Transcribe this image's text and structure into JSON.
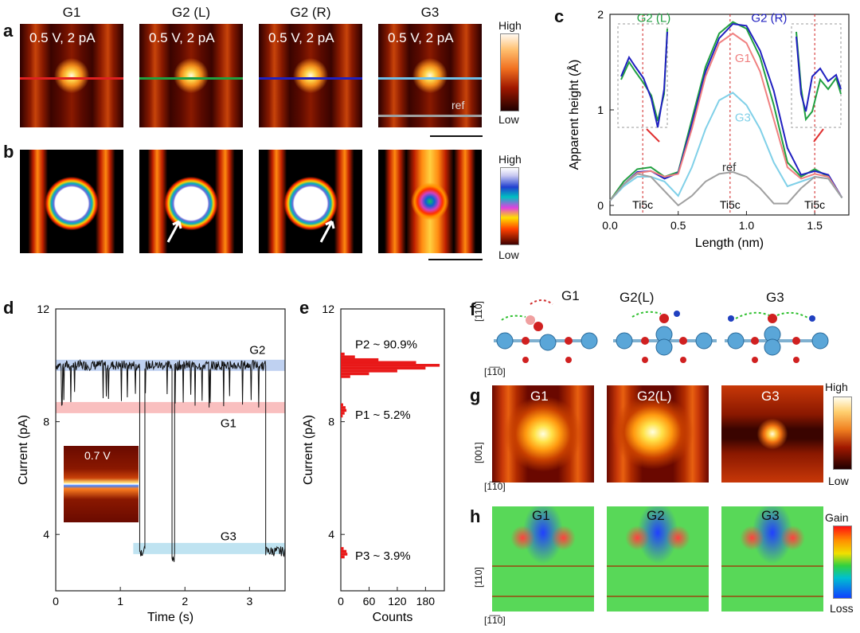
{
  "figure": {
    "panel_letters": [
      "a",
      "b",
      "c",
      "d",
      "e",
      "f",
      "g",
      "h"
    ],
    "a": {
      "columns": [
        "G1",
        "G2 (L)",
        "G2 (R)",
        "G3"
      ],
      "bias_label": "0.5 V, 2 pA",
      "ref_label": "ref",
      "colorbar_high": "High",
      "colorbar_low": "Low",
      "line_colors": [
        "#e02020",
        "#20a040",
        "#2020c0",
        "#70c0e8"
      ]
    },
    "b": {
      "colorbar_high": "High",
      "colorbar_low": "Low"
    },
    "c_labels": {
      "ti_labels": [
        "Ti5c",
        "Ti5c",
        "Ti5c"
      ],
      "inset_arrow_color": "#e03030"
    },
    "d_labels": {
      "inset_bias": "0.7 V",
      "state_labels": [
        "G2",
        "G1",
        "G3"
      ],
      "band_colors": [
        "#b8ccf0",
        "#f8b8b8",
        "#b8e0f0"
      ]
    },
    "e_labels": {
      "populations": [
        "P2 ~ 90.9%",
        "P1 ~ 5.2%",
        "P3 ~ 3.9%"
      ]
    },
    "f": {
      "labels": [
        "G1",
        "G2(L)",
        "G3"
      ],
      "axis_up": "[110]",
      "axis_right": "[1̅1̅0]"
    },
    "g": {
      "labels": [
        "G1",
        "G2(L)",
        "G3"
      ],
      "axis_up": "[001]",
      "axis_right": "[1̅1̅0]",
      "colorbar_high": "High",
      "colorbar_low": "Low"
    },
    "h": {
      "labels": [
        "G1",
        "G2",
        "G3"
      ],
      "axis_up": "[110]",
      "axis_right": "[1̅1̅0]",
      "colorbar_high": "Gain",
      "colorbar_low": "Loss"
    }
  },
  "chart_data": [
    {
      "panel": "c",
      "type": "line",
      "xlabel": "Length (nm)",
      "ylabel": "Apparent height (Å)",
      "xlim": [
        0,
        1.75
      ],
      "ylim": [
        -0.1,
        2.0
      ],
      "xticks": [
        0.0,
        0.5,
        1.0,
        1.5
      ],
      "yticks": [
        0,
        1,
        2
      ],
      "series": [
        {
          "name": "G2 (L)",
          "color": "#20a040",
          "x": [
            0,
            0.1,
            0.2,
            0.3,
            0.4,
            0.5,
            0.6,
            0.7,
            0.8,
            0.9,
            1.0,
            1.1,
            1.2,
            1.3,
            1.4,
            1.5,
            1.6,
            1.7
          ],
          "y": [
            0.05,
            0.25,
            0.38,
            0.4,
            0.3,
            0.35,
            0.9,
            1.45,
            1.8,
            1.92,
            1.85,
            1.55,
            1.05,
            0.45,
            0.3,
            0.38,
            0.3,
            0.08
          ]
        },
        {
          "name": "G2 (R)",
          "color": "#2020c0",
          "x": [
            0,
            0.1,
            0.2,
            0.3,
            0.4,
            0.5,
            0.6,
            0.7,
            0.8,
            0.9,
            1.0,
            1.1,
            1.2,
            1.3,
            1.4,
            1.5,
            1.6,
            1.7
          ],
          "y": [
            0.05,
            0.22,
            0.35,
            0.36,
            0.28,
            0.34,
            0.85,
            1.4,
            1.75,
            1.9,
            1.88,
            1.62,
            1.2,
            0.6,
            0.32,
            0.36,
            0.32,
            0.08
          ]
        },
        {
          "name": "G1",
          "color": "#f08080",
          "x": [
            0,
            0.1,
            0.2,
            0.3,
            0.4,
            0.5,
            0.6,
            0.7,
            0.8,
            0.9,
            1.0,
            1.1,
            1.2,
            1.3,
            1.4,
            1.5,
            1.6,
            1.7
          ],
          "y": [
            0.05,
            0.22,
            0.34,
            0.36,
            0.3,
            0.33,
            0.8,
            1.35,
            1.7,
            1.8,
            1.7,
            1.4,
            0.9,
            0.4,
            0.28,
            0.33,
            0.3,
            0.08
          ]
        },
        {
          "name": "G3",
          "color": "#80d0e8",
          "x": [
            0,
            0.1,
            0.2,
            0.3,
            0.4,
            0.5,
            0.6,
            0.7,
            0.8,
            0.9,
            1.0,
            1.1,
            1.2,
            1.3,
            1.4,
            1.5,
            1.6,
            1.7
          ],
          "y": [
            0.05,
            0.2,
            0.3,
            0.3,
            0.25,
            0.1,
            0.4,
            0.8,
            1.1,
            1.18,
            1.05,
            0.8,
            0.45,
            0.2,
            0.25,
            0.3,
            0.28,
            0.08
          ]
        },
        {
          "name": "ref",
          "color": "#a0a0a0",
          "x": [
            0,
            0.1,
            0.2,
            0.3,
            0.4,
            0.5,
            0.6,
            0.7,
            0.8,
            0.9,
            1.0,
            1.1,
            1.2,
            1.3,
            1.4,
            1.5,
            1.6,
            1.7
          ],
          "y": [
            0.05,
            0.22,
            0.33,
            0.3,
            0.15,
            0.0,
            0.1,
            0.25,
            0.33,
            0.35,
            0.3,
            0.18,
            0.02,
            0.02,
            0.18,
            0.3,
            0.28,
            0.08
          ]
        }
      ],
      "vlines": [
        0.24,
        0.88,
        1.5
      ]
    },
    {
      "panel": "d",
      "type": "line",
      "xlabel": "Time (s)",
      "ylabel": "Current (pA)",
      "xlim": [
        0,
        3.55
      ],
      "ylim": [
        2,
        12
      ],
      "xticks": [
        0,
        1,
        2,
        3
      ],
      "yticks": [
        4,
        8,
        12
      ],
      "bands": [
        {
          "name": "G2",
          "y": 10.0
        },
        {
          "name": "G1",
          "y": 8.5
        },
        {
          "name": "G3",
          "y": 3.5
        }
      ],
      "segments": [
        {
          "t0": 0.0,
          "t1": 1.3,
          "level": 10.0
        },
        {
          "t0": 1.3,
          "t1": 1.38,
          "level": 3.4
        },
        {
          "t0": 1.38,
          "t1": 1.8,
          "level": 10.0
        },
        {
          "t0": 1.8,
          "t1": 1.84,
          "level": 3.2
        },
        {
          "t0": 1.84,
          "t1": 3.25,
          "level": 10.0
        },
        {
          "t0": 3.25,
          "t1": 3.55,
          "level": 3.4
        }
      ]
    },
    {
      "panel": "e",
      "type": "bar",
      "xlabel": "Counts",
      "ylabel": "Current (pA)",
      "xlim": [
        0,
        220
      ],
      "ylim": [
        2,
        12
      ],
      "xticks": [
        0,
        60,
        120,
        180
      ],
      "yticks": [
        4,
        8,
        12
      ],
      "bins_current": [
        3.2,
        3.3,
        3.4,
        3.5,
        8.2,
        8.3,
        8.4,
        8.5,
        8.6,
        9.6,
        9.7,
        9.8,
        9.9,
        10.0,
        10.1,
        10.2,
        10.3,
        10.4
      ],
      "counts": [
        8,
        14,
        12,
        6,
        4,
        8,
        12,
        10,
        5,
        20,
        60,
        120,
        180,
        210,
        160,
        80,
        30,
        8
      ]
    }
  ]
}
